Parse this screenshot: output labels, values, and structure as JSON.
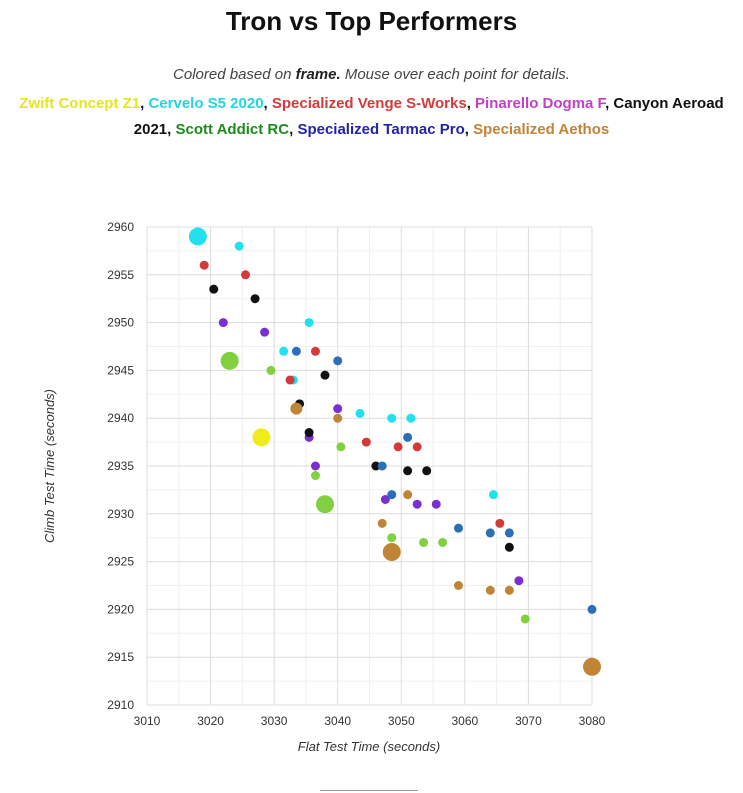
{
  "header": {
    "title": "Tron vs Top Performers",
    "subtitle_prefix": "Colored based on ",
    "subtitle_bold": "frame.",
    "subtitle_suffix": " Mouse over each point for details."
  },
  "legend": [
    {
      "label": "Zwift Concept Z1",
      "color": "#e6e61e"
    },
    {
      "label": "Cervelo S5 2020",
      "color": "#22d4e6"
    },
    {
      "label": "Specialized Venge S-Works",
      "color": "#d33a3a"
    },
    {
      "label": "Pinarello Dogma F",
      "color": "#c23fc7"
    },
    {
      "label": "Canyon Aeroad 2021",
      "color": "#111111"
    },
    {
      "label": "Scott Addict RC",
      "color": "#1e8a1e"
    },
    {
      "label": "Specialized Tarmac Pro",
      "color": "#2323a8"
    },
    {
      "label": "Specialized Aethos",
      "color": "#c08437"
    }
  ],
  "chart_data": {
    "type": "scatter",
    "title": "Tron vs Top Performers",
    "xlabel": "Flat Test Time (seconds)",
    "ylabel": "Climb Test Time (seconds)",
    "xlim": [
      3010,
      3080
    ],
    "ylim": [
      2910,
      2960
    ],
    "xticks": [
      3010,
      3020,
      3030,
      3040,
      3050,
      3060,
      3070,
      3080
    ],
    "yticks": [
      2910,
      2915,
      2920,
      2925,
      2930,
      2935,
      2940,
      2945,
      2950,
      2955,
      2960
    ],
    "grid": true,
    "series": [
      {
        "name": "Zwift Concept Z1",
        "color": "#f0ec1c",
        "points": [
          [
            3028.0,
            2938.0,
            "large"
          ]
        ]
      },
      {
        "name": "Cervelo S5 2020",
        "color": "#22e0ee",
        "points": [
          [
            3018.0,
            2959.0,
            "large"
          ],
          [
            3024.5,
            2958.0,
            "small"
          ],
          [
            3035.5,
            2950.0,
            "small"
          ],
          [
            3031.5,
            2947.0,
            "small"
          ],
          [
            3033.0,
            2944.0,
            "small"
          ],
          [
            3043.5,
            2940.5,
            "small"
          ],
          [
            3048.5,
            2940.0,
            "small"
          ],
          [
            3051.5,
            2940.0,
            "small"
          ],
          [
            3064.5,
            2932.0,
            "small"
          ]
        ]
      },
      {
        "name": "Specialized Venge S-Works",
        "color": "#d33a3a",
        "points": [
          [
            3019.0,
            2956.0,
            "small"
          ],
          [
            3025.5,
            2955.0,
            "small"
          ],
          [
            3036.5,
            2947.0,
            "small"
          ],
          [
            3032.5,
            2944.0,
            "small"
          ],
          [
            3044.5,
            2937.5,
            "small"
          ],
          [
            3049.5,
            2937.0,
            "small"
          ],
          [
            3052.5,
            2937.0,
            "small"
          ],
          [
            3065.5,
            2929.0,
            "small"
          ]
        ]
      },
      {
        "name": "Pinarello Dogma F",
        "color": "#7b2fd0",
        "points": [
          [
            3022.0,
            2950.0,
            "small"
          ],
          [
            3028.5,
            2949.0,
            "small"
          ],
          [
            3040.0,
            2941.0,
            "small"
          ],
          [
            3035.5,
            2938.0,
            "small"
          ],
          [
            3036.5,
            2935.0,
            "small"
          ],
          [
            3047.5,
            2931.5,
            "small"
          ],
          [
            3052.5,
            2931.0,
            "small"
          ],
          [
            3055.5,
            2931.0,
            "small"
          ],
          [
            3068.5,
            2923.0,
            "small"
          ]
        ]
      },
      {
        "name": "Canyon Aeroad 2021",
        "color": "#111111",
        "points": [
          [
            3020.5,
            2953.5,
            "small"
          ],
          [
            3027.0,
            2952.5,
            "small"
          ],
          [
            3038.0,
            2944.5,
            "small"
          ],
          [
            3034.0,
            2941.5,
            "small"
          ],
          [
            3035.5,
            2938.5,
            "small"
          ],
          [
            3046.0,
            2935.0,
            "small"
          ],
          [
            3051.0,
            2934.5,
            "small"
          ],
          [
            3054.0,
            2934.5,
            "small"
          ],
          [
            3067.0,
            2926.5,
            "small"
          ]
        ]
      },
      {
        "name": "Scott Addict RC",
        "color": "#80d040",
        "points": [
          [
            3023.0,
            2946.0,
            "large"
          ],
          [
            3029.5,
            2945.0,
            "small"
          ],
          [
            3040.5,
            2937.0,
            "small"
          ],
          [
            3036.5,
            2934.0,
            "small"
          ],
          [
            3038.0,
            2931.0,
            "large"
          ],
          [
            3048.5,
            2927.5,
            "small"
          ],
          [
            3053.5,
            2927.0,
            "small"
          ],
          [
            3056.5,
            2927.0,
            "small"
          ],
          [
            3069.5,
            2919.0,
            "small"
          ]
        ]
      },
      {
        "name": "Specialized Tarmac Pro",
        "color": "#2a6fb8",
        "points": [
          [
            3033.5,
            2947.0,
            "small"
          ],
          [
            3040.0,
            2946.0,
            "small"
          ],
          [
            3051.0,
            2938.0,
            "small"
          ],
          [
            3047.0,
            2935.0,
            "small"
          ],
          [
            3048.5,
            2932.0,
            "small"
          ],
          [
            3059.0,
            2928.5,
            "small"
          ],
          [
            3064.0,
            2928.0,
            "small"
          ],
          [
            3067.0,
            2928.0,
            "small"
          ],
          [
            3080.0,
            2920.0,
            "small"
          ]
        ]
      },
      {
        "name": "Specialized Aethos",
        "color": "#c08437",
        "points": [
          [
            3033.5,
            2941.0,
            "medium"
          ],
          [
            3040.0,
            2940.0,
            "small"
          ],
          [
            3051.0,
            2932.0,
            "small"
          ],
          [
            3047.0,
            2929.0,
            "small"
          ],
          [
            3048.5,
            2926.0,
            "large"
          ],
          [
            3059.0,
            2922.5,
            "small"
          ],
          [
            3064.0,
            2922.0,
            "small"
          ],
          [
            3067.0,
            2922.0,
            "small"
          ],
          [
            3080.0,
            2914.0,
            "large"
          ]
        ]
      }
    ]
  }
}
